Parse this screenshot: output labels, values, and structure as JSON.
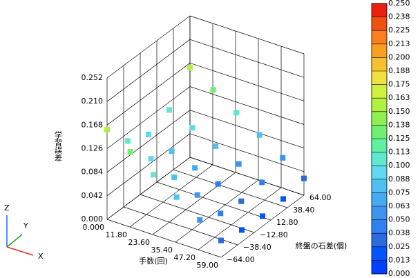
{
  "chart_data": {
    "type": "scatter3d",
    "xlabel": "手数(回)",
    "ylabel": "終盤の石差(個)",
    "zlabel": "学習誤差",
    "xlim": [
      0,
      59
    ],
    "ylim": [
      -64,
      64
    ],
    "zlim": [
      0,
      0.252
    ],
    "xticks": [
      {
        "value": 0,
        "label": "0.000"
      },
      {
        "value": 11.8,
        "label": "11.80"
      },
      {
        "value": 23.6,
        "label": "23.60"
      },
      {
        "value": 35.4,
        "label": "35.40"
      },
      {
        "value": 47.2,
        "label": "47.20"
      },
      {
        "value": 59,
        "label": "59.00"
      }
    ],
    "yticks": [
      {
        "value": -64,
        "label": "−64.00"
      },
      {
        "value": -38.4,
        "label": "−38.40"
      },
      {
        "value": -12.8,
        "label": "−12.80"
      },
      {
        "value": 12.8,
        "label": "12.80"
      },
      {
        "value": 38.4,
        "label": "38.40"
      },
      {
        "value": 64,
        "label": "64.00"
      }
    ],
    "zticks": [
      {
        "value": 0,
        "label": "0.000"
      },
      {
        "value": 0.042,
        "label": "0.042"
      },
      {
        "value": 0.084,
        "label": "0.084"
      },
      {
        "value": 0.126,
        "label": "0.126"
      },
      {
        "value": 0.168,
        "label": "0.168"
      },
      {
        "value": 0.21,
        "label": "0.210"
      },
      {
        "value": 0.252,
        "label": "0.252"
      }
    ],
    "grid": true,
    "points": {
      "x": [
        0,
        0,
        0,
        0,
        0,
        12,
        12,
        12,
        12,
        12,
        24,
        24,
        24,
        24,
        24,
        36,
        36,
        36,
        36,
        36,
        48,
        48,
        48,
        48,
        48,
        59,
        59,
        59,
        59,
        59
      ],
      "y": [
        -64,
        -32,
        0,
        32,
        64,
        -64,
        -32,
        0,
        32,
        64,
        -64,
        -32,
        0,
        32,
        64,
        -64,
        -32,
        0,
        32,
        64,
        -64,
        -32,
        0,
        32,
        64,
        -64,
        -32,
        0,
        32,
        64
      ],
      "z": [
        0.16,
        0.112,
        0.096,
        0.112,
        0.16,
        0.134,
        0.094,
        0.08,
        0.094,
        0.134,
        0.107,
        0.075,
        0.064,
        0.075,
        0.107,
        0.081,
        0.057,
        0.049,
        0.057,
        0.081,
        0.054,
        0.038,
        0.032,
        0.038,
        0.054,
        0.03,
        0.021,
        0.018,
        0.021,
        0.03
      ]
    },
    "colorbar": {
      "colors": [
        "#0040ff",
        "#0055ff",
        "#2a6be0",
        "#3080f0",
        "#3d95f0",
        "#45aaf0",
        "#50c0f0",
        "#60d8f0",
        "#60e8d0",
        "#60f0a0",
        "#70f070",
        "#90f050",
        "#b0f040",
        "#d0f040",
        "#f0e040",
        "#f8c030",
        "#f8a020",
        "#f88020",
        "#f05010",
        "#e82010"
      ],
      "ticks": [
        {
          "value": 0,
          "label": "0.000"
        },
        {
          "value": 0.0125,
          "label": "0.013"
        },
        {
          "value": 0.025,
          "label": "0.025"
        },
        {
          "value": 0.0375,
          "label": "0.038"
        },
        {
          "value": 0.05,
          "label": "0.050"
        },
        {
          "value": 0.0625,
          "label": "0.063"
        },
        {
          "value": 0.075,
          "label": "0.075"
        },
        {
          "value": 0.0875,
          "label": "0.088"
        },
        {
          "value": 0.1,
          "label": "0.100"
        },
        {
          "value": 0.1125,
          "label": "0.113"
        },
        {
          "value": 0.125,
          "label": "0.125"
        },
        {
          "value": 0.1375,
          "label": "0.138"
        },
        {
          "value": 0.15,
          "label": "0.150"
        },
        {
          "value": 0.1625,
          "label": "0.163"
        },
        {
          "value": 0.175,
          "label": "0.175"
        },
        {
          "value": 0.1875,
          "label": "0.188"
        },
        {
          "value": 0.2,
          "label": "0.200"
        },
        {
          "value": 0.2125,
          "label": "0.213"
        },
        {
          "value": 0.225,
          "label": "0.225"
        },
        {
          "value": 0.2375,
          "label": "0.238"
        },
        {
          "value": 0.25,
          "label": "0.250"
        }
      ]
    },
    "axes_triad": [
      "Z",
      "Y",
      "X"
    ]
  }
}
